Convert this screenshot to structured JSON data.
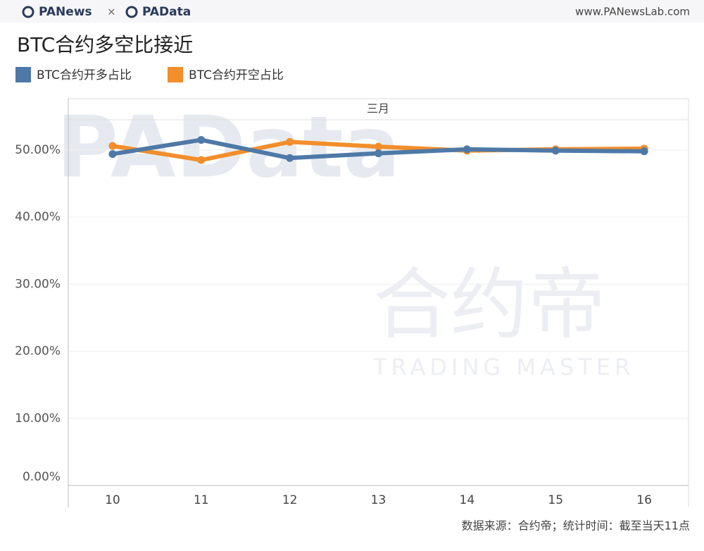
{
  "header": {
    "brand": "PANews",
    "separator": "×",
    "brand2": "PAData",
    "url": "www.PANewsLab.com"
  },
  "watermarks": [
    "PAData",
    "合约帝",
    "TRADING MASTER"
  ],
  "source": "数据来源：合约帝；统计时间：截至当天11点",
  "chart_data": {
    "type": "line",
    "title": "BTC合约多空比接近",
    "x_group_label": "三月",
    "categories": [
      "10",
      "11",
      "12",
      "13",
      "14",
      "15",
      "16"
    ],
    "series": [
      {
        "name": "BTC合约开多占比",
        "color": "#4e79a7",
        "values": [
          49.4,
          51.5,
          48.8,
          49.5,
          50.1,
          49.9,
          49.8
        ]
      },
      {
        "name": "BTC合约开空占比",
        "color": "#f28e2b",
        "values": [
          50.6,
          48.5,
          51.2,
          50.5,
          49.9,
          50.1,
          50.2
        ]
      }
    ],
    "ylim": [
      0,
      54.5
    ],
    "yticks": [
      {
        "value": 0,
        "label": "0.00%"
      },
      {
        "value": 10,
        "label": "10.00%"
      },
      {
        "value": 20,
        "label": "20.00%"
      },
      {
        "value": 30,
        "label": "30.00%"
      },
      {
        "value": 40,
        "label": "40.00%"
      },
      {
        "value": 50,
        "label": "50.00%"
      }
    ],
    "grid": true
  }
}
